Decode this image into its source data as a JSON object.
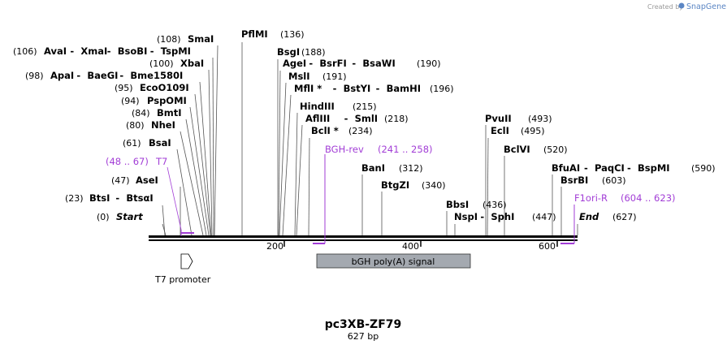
{
  "watermark": {
    "created_by": "Created by",
    "brand": "SnapGene"
  },
  "plasmid": {
    "name": "pc3XB-ZF79",
    "length": "627 bp"
  },
  "ruler": {
    "ticks": [
      "200",
      "400",
      "600"
    ]
  },
  "sites": [
    {
      "pos": "(0)",
      "names": [
        "Start"
      ],
      "style": "italic"
    },
    {
      "pos": "(23)",
      "names": [
        "BtsI",
        "BtsαI"
      ]
    },
    {
      "pos": "(47)",
      "names": [
        "AseI"
      ]
    },
    {
      "pos": "(61)",
      "names": [
        "BsaI"
      ]
    },
    {
      "pos": "(80)",
      "names": [
        "NheI"
      ]
    },
    {
      "pos": "(84)",
      "names": [
        "BmtI"
      ]
    },
    {
      "pos": "(94)",
      "names": [
        "PspOMI"
      ]
    },
    {
      "pos": "(95)",
      "names": [
        "EcoO109I"
      ]
    },
    {
      "pos": "(98)",
      "names": [
        "ApaI",
        "BaeGI",
        "Bme1580I"
      ]
    },
    {
      "pos": "(100)",
      "names": [
        "XbaI"
      ]
    },
    {
      "pos": "(106)",
      "names": [
        "AvaI",
        "XmaI",
        "BsoBI",
        "TspMI"
      ]
    },
    {
      "pos": "(108)",
      "names": [
        "SmaI"
      ]
    },
    {
      "pos": "(136)",
      "names": [
        "PflMI"
      ]
    },
    {
      "pos": "(188)",
      "names": [
        "BsgI"
      ]
    },
    {
      "pos": "(190)",
      "names": [
        "AgeI",
        "BsrFI",
        "BsaWI"
      ]
    },
    {
      "pos": "(191)",
      "names": [
        "MslI"
      ]
    },
    {
      "pos": "(196)",
      "names": [
        "MflI *",
        "BstYI",
        "BamHI"
      ]
    },
    {
      "pos": "(215)",
      "names": [
        "HindIII"
      ]
    },
    {
      "pos": "(218)",
      "names": [
        "AflIII",
        "SmlI"
      ]
    },
    {
      "pos": "(234)",
      "names": [
        "BclI *"
      ]
    },
    {
      "pos": "(312)",
      "names": [
        "BanI"
      ]
    },
    {
      "pos": "(340)",
      "names": [
        "BtgZI"
      ]
    },
    {
      "pos": "(436)",
      "names": [
        "BbsI"
      ]
    },
    {
      "pos": "(447)",
      "names": [
        "NspI",
        "SphI"
      ]
    },
    {
      "pos": "(493)",
      "names": [
        "PvuII"
      ]
    },
    {
      "pos": "(495)",
      "names": [
        "EclI"
      ]
    },
    {
      "pos": "(520)",
      "names": [
        "BclVI"
      ]
    },
    {
      "pos": "(590)",
      "names": [
        "BfuAI",
        "PaqCI",
        "BspMI"
      ]
    },
    {
      "pos": "(603)",
      "names": [
        "BsrBI"
      ]
    },
    {
      "pos": "(627)",
      "names": [
        "End"
      ],
      "style": "italic"
    }
  ],
  "primers": [
    {
      "name": "T7",
      "range": "(48 .. 67)"
    },
    {
      "name": "BGH-rev",
      "range": "(241 .. 258)"
    },
    {
      "name": "F1ori-R",
      "range": "(604 .. 623)"
    }
  ],
  "features": [
    {
      "name": "T7 promoter"
    },
    {
      "name": "bGH poly(A) signal"
    }
  ],
  "colors": {
    "primer": "#a23ed6",
    "feature_fill": "#a4a9b0",
    "backbone": "#000000"
  }
}
